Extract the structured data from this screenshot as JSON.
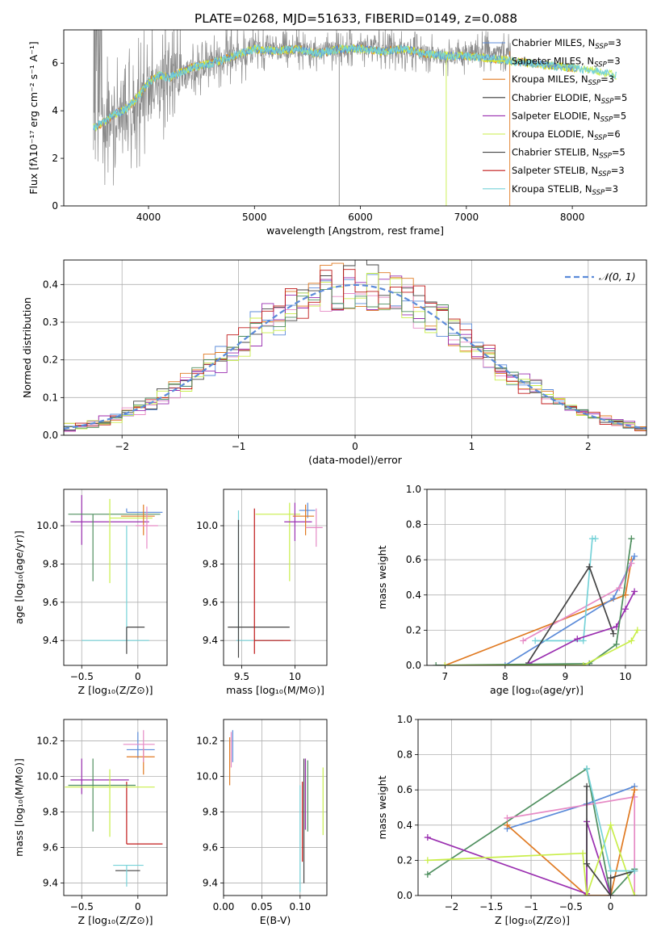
{
  "figure_title": "PLATE=0268, MJD=51633, FIBERID=0149, z=0.088",
  "colors": {
    "chabrier_miles": "#5b8bd9",
    "salpeter_miles": "#e5e500",
    "kroupa_miles": "#e07a22",
    "chabrier_elodie": "#3a3a3a",
    "salpeter_elodie": "#9a2fb0",
    "kroupa_elodie": "#c9ee4a",
    "chabrier_stelib": "#444444",
    "salpeter_stelib": "#c01818",
    "kroupa_stelib": "#76d2d8",
    "pink": "#e68ac5",
    "green": "#4f8f5f",
    "gray": "#8a8a8a",
    "normal": "#5b8bd9"
  },
  "chart_data": [
    {
      "id": "spectrum",
      "type": "line",
      "xlabel": "wavelength [Angstrom, rest frame]",
      "ylabel": "Flux [fλ10⁻¹⁷ erg cm⁻² s⁻¹ A⁻¹]",
      "xlim": [
        3200,
        8700
      ],
      "ylim": [
        0,
        7.4
      ],
      "xticks": [
        4000,
        5000,
        6000,
        7000,
        8000
      ],
      "yticks": [
        0,
        2,
        4,
        6
      ],
      "legend": "right",
      "legend_entries": [
        {
          "label": "Chabrier MILES, N",
          "sub": "SSP",
          "suffix": "=3",
          "color": "chabrier_miles"
        },
        {
          "label": "Salpeter MILES, N",
          "sub": "SSP",
          "suffix": "=3",
          "color": "salpeter_miles"
        },
        {
          "label": "Kroupa MILES, N",
          "sub": "SSP",
          "suffix": "=3",
          "color": "kroupa_miles"
        },
        {
          "label": "Chabrier ELODIE, N",
          "sub": "SSP",
          "suffix": "=5",
          "color": "chabrier_elodie"
        },
        {
          "label": "Salpeter ELODIE, N",
          "sub": "SSP",
          "suffix": "=5",
          "color": "salpeter_elodie"
        },
        {
          "label": "Kroupa ELODIE, N",
          "sub": "SSP",
          "suffix": "=6",
          "color": "kroupa_elodie"
        },
        {
          "label": "Chabrier STELIB, N",
          "sub": "SSP",
          "suffix": "=5",
          "color": "chabrier_stelib"
        },
        {
          "label": "Salpeter STELIB, N",
          "sub": "SSP",
          "suffix": "=3",
          "color": "salpeter_stelib"
        },
        {
          "label": "Kroupa STELIB, N",
          "sub": "SSP",
          "suffix": "=3",
          "color": "kroupa_stelib"
        }
      ],
      "data_x": [
        3500,
        3600,
        3700,
        3800,
        3900,
        4000,
        4100,
        4200,
        4300,
        4400,
        4500,
        4600,
        4700,
        4800,
        4900,
        5000,
        5200,
        5400,
        5600,
        5800,
        6000,
        6200,
        6400,
        6600,
        6800,
        7000,
        7200,
        7400
      ],
      "data_y": [
        3.3,
        3.5,
        3.8,
        4.0,
        4.2,
        5.0,
        5.3,
        5.5,
        5.4,
        5.7,
        5.9,
        6.0,
        6.2,
        6.3,
        6.4,
        6.6,
        6.5,
        6.6,
        6.5,
        6.6,
        6.7,
        6.6,
        6.5,
        6.4,
        6.3,
        6.4,
        6.5,
        6.4
      ],
      "model_x": [
        3500,
        3600,
        3700,
        3800,
        3900,
        4000,
        4100,
        4200,
        4300,
        4400,
        4600,
        4800,
        5000,
        5200,
        5400,
        5600,
        5800,
        6000,
        6200,
        6400,
        6600,
        6800,
        7000,
        7200,
        7400,
        7600,
        7800,
        8000,
        8200,
        8400
      ],
      "model_y": [
        3.3,
        3.6,
        3.9,
        4.1,
        4.6,
        5.2,
        5.5,
        5.4,
        5.6,
        5.8,
        6.0,
        6.3,
        6.6,
        6.5,
        6.6,
        6.4,
        6.6,
        6.6,
        6.5,
        6.6,
        6.4,
        6.3,
        6.3,
        6.2,
        6.1,
        6.0,
        5.9,
        5.8,
        5.7,
        5.5
      ]
    },
    {
      "id": "residuals",
      "type": "line",
      "xlabel": "(data-model)/error",
      "ylabel": "Normed distribution",
      "xlim": [
        -2.5,
        2.5
      ],
      "ylim": [
        0,
        0.465
      ],
      "xticks": [
        -2,
        -1,
        0,
        1,
        2
      ],
      "yticks": [
        0.0,
        0.1,
        0.2,
        0.3,
        0.4
      ],
      "legend": "top-right",
      "legend_label": "𝒩(0, 1)",
      "gaussian": {
        "mean": 0,
        "sigma": 1
      },
      "bin_width": 0.1
    },
    {
      "id": "age_vs_Z",
      "type": "scatter",
      "xlabel": "Z [log₁₀(Z/Z⊙)]",
      "ylabel": "age  [log₁₀(age/yr)]",
      "xlim": [
        -0.66,
        0.26
      ],
      "ylim": [
        9.27,
        10.19
      ],
      "xticks": [
        -0.5,
        0.0
      ],
      "yticks": [
        9.4,
        9.6,
        9.8,
        10.0
      ],
      "points": [
        {
          "x": -0.1,
          "y": 9.4,
          "xerr": [
            0.4,
            0.2
          ],
          "yerr": [
            0.0,
            0.6
          ],
          "color": "kroupa_stelib"
        },
        {
          "x": -0.1,
          "y": 9.47,
          "xerr": [
            0.0,
            0.16
          ],
          "yerr": [
            0.14,
            0.0
          ],
          "color": "chabrier_stelib"
        },
        {
          "x": -0.5,
          "y": 10.02,
          "xerr": [
            0.1,
            0.6
          ],
          "yerr": [
            0.12,
            0.14
          ],
          "color": "salpeter_elodie"
        },
        {
          "x": -0.4,
          "y": 10.06,
          "xerr": [
            0.22,
            0.6
          ],
          "yerr": [
            0.35,
            0.0
          ],
          "color": "green"
        },
        {
          "x": -0.25,
          "y": 10.04,
          "xerr": [
            0.0,
            0.38
          ],
          "yerr": [
            0.34,
            0.1
          ],
          "color": "kroupa_elodie"
        },
        {
          "x": -0.1,
          "y": 10.07,
          "xerr": [
            0.0,
            0.32
          ],
          "yerr": [
            0.0,
            0.02
          ],
          "color": "chabrier_miles"
        },
        {
          "x": 0.05,
          "y": 10.05,
          "xerr": [
            0.2,
            0.1
          ],
          "yerr": [
            0.1,
            0.06
          ],
          "color": "kroupa_miles"
        },
        {
          "x": 0.08,
          "y": 10.0,
          "xerr": [
            0.1,
            0.1
          ],
          "yerr": [
            0.12,
            0.1
          ],
          "color": "pink"
        }
      ]
    },
    {
      "id": "age_vs_mass",
      "type": "scatter",
      "xlabel": "mass [log₁₀(M/M⊙)]",
      "ylabel": "",
      "xlim": [
        9.33,
        10.3
      ],
      "ylim": [
        9.27,
        10.19
      ],
      "xticks": [
        9.5,
        10.0
      ],
      "yticks": [
        9.4,
        9.6,
        9.8,
        10.0
      ],
      "points": [
        {
          "x": 9.47,
          "y": 9.4,
          "xerr": [
            0.02,
            0.42
          ],
          "yerr": [
            0.0,
            0.68
          ],
          "color": "kroupa_stelib"
        },
        {
          "x": 9.47,
          "y": 9.47,
          "xerr": [
            0.1,
            0.48
          ],
          "yerr": [
            0.16,
            0.56
          ],
          "color": "chabrier_stelib"
        },
        {
          "x": 9.62,
          "y": 9.4,
          "xerr": [
            0.0,
            0.34
          ],
          "yerr": [
            0.07,
            0.69
          ],
          "color": "salpeter_stelib"
        },
        {
          "x": 9.95,
          "y": 10.06,
          "xerr": [
            0.32,
            0.1
          ],
          "yerr": [
            0.35,
            0.06
          ],
          "color": "kroupa_elodie"
        },
        {
          "x": 10.0,
          "y": 10.02,
          "xerr": [
            0.1,
            0.16
          ],
          "yerr": [
            0.1,
            0.1
          ],
          "color": "salpeter_elodie"
        },
        {
          "x": 10.12,
          "y": 10.08,
          "xerr": [
            0.08,
            0.07
          ],
          "yerr": [
            0.04,
            0.04
          ],
          "color": "chabrier_miles"
        },
        {
          "x": 10.1,
          "y": 10.05,
          "xerr": [
            0.12,
            0.08
          ],
          "yerr": [
            0.1,
            0.06
          ],
          "color": "kroupa_miles"
        },
        {
          "x": 10.2,
          "y": 9.99,
          "xerr": [
            0.1,
            0.06
          ],
          "yerr": [
            0.1,
            0.1
          ],
          "color": "pink"
        }
      ]
    },
    {
      "id": "mass_weight_vs_age",
      "type": "line",
      "xlabel": "age  [log₁₀(age/yr)]",
      "ylabel": "mass weight",
      "xlim": [
        6.7,
        10.35
      ],
      "ylim": [
        0,
        1.0
      ],
      "xticks": [
        7,
        8,
        9,
        10
      ],
      "yticks": [
        0.0,
        0.2,
        0.4,
        0.6,
        0.8,
        1.0
      ],
      "series": [
        {
          "color": "kroupa_miles",
          "x": [
            7.0,
            10.0,
            10.1
          ],
          "y": [
            0.0,
            0.4,
            0.6
          ]
        },
        {
          "color": "chabrier_miles",
          "x": [
            8.0,
            9.8,
            10.15
          ],
          "y": [
            0.0,
            0.38,
            0.62
          ]
        },
        {
          "color": "pink",
          "x": [
            8.3,
            9.9,
            10.1
          ],
          "y": [
            0.14,
            0.44,
            0.58
          ]
        },
        {
          "color": "kroupa_stelib",
          "x": [
            8.5,
            9.3,
            9.45,
            9.5
          ],
          "y": [
            0.14,
            0.14,
            0.72,
            0.72
          ]
        },
        {
          "color": "chabrier_stelib",
          "x": [
            8.35,
            9.4,
            9.8
          ],
          "y": [
            0.0,
            0.56,
            0.18
          ]
        },
        {
          "color": "salpeter_elodie",
          "x": [
            8.4,
            9.2,
            9.85,
            10.0,
            10.15
          ],
          "y": [
            0.01,
            0.15,
            0.22,
            0.32,
            0.42
          ]
        },
        {
          "color": "green",
          "x": [
            6.85,
            9.4,
            9.85,
            10.1
          ],
          "y": [
            0.0,
            0.01,
            0.12,
            0.72
          ]
        },
        {
          "color": "kroupa_elodie",
          "x": [
            7.0,
            9.3,
            10.1,
            10.2
          ],
          "y": [
            0.0,
            0.0,
            0.14,
            0.2
          ]
        }
      ]
    },
    {
      "id": "mass_vs_Z",
      "type": "scatter",
      "xlabel": "Z [log₁₀(Z/Z⊙)]",
      "ylabel": "mass [log₁₀(M/M⊙)]",
      "xlim": [
        -0.66,
        0.26
      ],
      "ylim": [
        9.33,
        10.32
      ],
      "xticks": [
        -0.5,
        0.0
      ],
      "yticks": [
        9.4,
        9.6,
        9.8,
        10.0,
        10.2
      ],
      "points": [
        {
          "x": -0.1,
          "y": 9.47,
          "xerr": [
            0.1,
            0.12
          ],
          "yerr": [
            0.0,
            0.0
          ],
          "color": "chabrier_stelib"
        },
        {
          "x": -0.1,
          "y": 9.5,
          "xerr": [
            0.12,
            0.15
          ],
          "yerr": [
            0.12,
            0.0
          ],
          "color": "kroupa_stelib"
        },
        {
          "x": -0.1,
          "y": 9.62,
          "xerr": [
            0.0,
            0.32
          ],
          "yerr": [
            0.0,
            0.35
          ],
          "color": "salpeter_stelib"
        },
        {
          "x": -0.5,
          "y": 9.98,
          "xerr": [
            0.1,
            0.42
          ],
          "yerr": [
            0.08,
            0.12
          ],
          "color": "salpeter_elodie"
        },
        {
          "x": -0.4,
          "y": 9.95,
          "xerr": [
            0.22,
            0.38
          ],
          "yerr": [
            0.26,
            0.15
          ],
          "color": "green"
        },
        {
          "x": -0.25,
          "y": 9.94,
          "xerr": [
            0.4,
            0.4
          ],
          "yerr": [
            0.28,
            0.1
          ],
          "color": "kroupa_elodie"
        },
        {
          "x": 0.0,
          "y": 10.15,
          "xerr": [
            0.1,
            0.15
          ],
          "yerr": [
            0.05,
            0.1
          ],
          "color": "chabrier_miles"
        },
        {
          "x": 0.05,
          "y": 10.11,
          "xerr": [
            0.15,
            0.1
          ],
          "yerr": [
            0.1,
            0.05
          ],
          "color": "kroupa_miles"
        },
        {
          "x": 0.05,
          "y": 10.18,
          "xerr": [
            0.18,
            0.1
          ],
          "yerr": [
            0.1,
            0.08
          ],
          "color": "pink"
        }
      ]
    },
    {
      "id": "mass_vs_EBV",
      "type": "scatter",
      "xlabel": "E(B-V)",
      "ylabel": "",
      "xlim": [
        0.0,
        0.135
      ],
      "ylim": [
        9.33,
        10.32
      ],
      "xticks": [
        0.0,
        0.05,
        0.1
      ],
      "xtick_labels": [
        "0.00",
        "0.05",
        "0.10"
      ],
      "yticks": [
        9.4,
        9.6,
        9.8,
        10.0,
        10.2
      ],
      "points": [
        {
          "x": 0.008,
          "y": 10.1,
          "xerr": [
            0,
            0
          ],
          "yerr": [
            0.15,
            0.12
          ],
          "color": "kroupa_miles"
        },
        {
          "x": 0.01,
          "y": 10.15,
          "xerr": [
            0,
            0
          ],
          "yerr": [
            0.1,
            0.1
          ],
          "color": "pink"
        },
        {
          "x": 0.012,
          "y": 10.18,
          "xerr": [
            0,
            0
          ],
          "yerr": [
            0.1,
            0.08
          ],
          "color": "chabrier_miles"
        },
        {
          "x": 0.1,
          "y": 9.5,
          "xerr": [
            0,
            0
          ],
          "yerr": [
            0.15,
            0.45
          ],
          "color": "kroupa_stelib"
        },
        {
          "x": 0.103,
          "y": 9.62,
          "xerr": [
            0,
            0
          ],
          "yerr": [
            0.1,
            0.35
          ],
          "color": "salpeter_stelib"
        },
        {
          "x": 0.105,
          "y": 9.85,
          "xerr": [
            0,
            0
          ],
          "yerr": [
            0.45,
            0.25
          ],
          "color": "chabrier_stelib"
        },
        {
          "x": 0.107,
          "y": 9.98,
          "xerr": [
            0,
            0
          ],
          "yerr": [
            0.28,
            0.12
          ],
          "color": "salpeter_elodie"
        },
        {
          "x": 0.11,
          "y": 9.95,
          "xerr": [
            0,
            0
          ],
          "yerr": [
            0.26,
            0.14
          ],
          "color": "green"
        },
        {
          "x": 0.13,
          "y": 9.85,
          "xerr": [
            0,
            0
          ],
          "yerr": [
            0.18,
            0.2
          ],
          "color": "kroupa_elodie"
        }
      ]
    },
    {
      "id": "mass_weight_vs_Z",
      "type": "line",
      "xlabel": "Z [log₁₀(Z/Z⊙)]",
      "ylabel": "mass weight",
      "xlim": [
        -2.42,
        0.45
      ],
      "ylim": [
        0,
        1.0
      ],
      "xticks": [
        -2.0,
        -1.5,
        -1.0,
        -0.5,
        0.0
      ],
      "yticks": [
        0.0,
        0.2,
        0.4,
        0.6,
        0.8,
        1.0
      ],
      "series": [
        {
          "color": "green",
          "x": [
            -2.3,
            -0.3,
            0.0,
            0.3
          ],
          "y": [
            0.12,
            0.72,
            0.0,
            0.15
          ]
        },
        {
          "color": "chabrier_miles",
          "x": [
            -1.3,
            -0.3,
            0.3
          ],
          "y": [
            0.38,
            0.52,
            0.62
          ]
        },
        {
          "color": "pink",
          "x": [
            -1.3,
            0.3,
            0.3
          ],
          "y": [
            0.44,
            0.56,
            0.0
          ]
        },
        {
          "color": "kroupa_miles",
          "x": [
            -1.3,
            -0.3,
            0.0,
            0.3
          ],
          "y": [
            0.4,
            0.0,
            0.0,
            0.6
          ]
        },
        {
          "color": "salpeter_elodie",
          "x": [
            -2.3,
            -0.3,
            -0.3,
            0.0
          ],
          "y": [
            0.33,
            0.01,
            0.42,
            0.0
          ]
        },
        {
          "color": "kroupa_elodie",
          "x": [
            -2.3,
            -0.35,
            -0.3,
            0.0,
            0.3
          ],
          "y": [
            0.2,
            0.24,
            0.0,
            0.4,
            0.0
          ]
        },
        {
          "color": "chabrier_stelib",
          "x": [
            -0.3,
            -0.3,
            0.0,
            0.0,
            0.3
          ],
          "y": [
            0.62,
            0.18,
            0.0,
            0.1,
            0.14
          ]
        },
        {
          "color": "kroupa_stelib",
          "x": [
            -0.3,
            0.0,
            0.3
          ],
          "y": [
            0.72,
            0.14,
            0.14
          ]
        }
      ]
    }
  ]
}
